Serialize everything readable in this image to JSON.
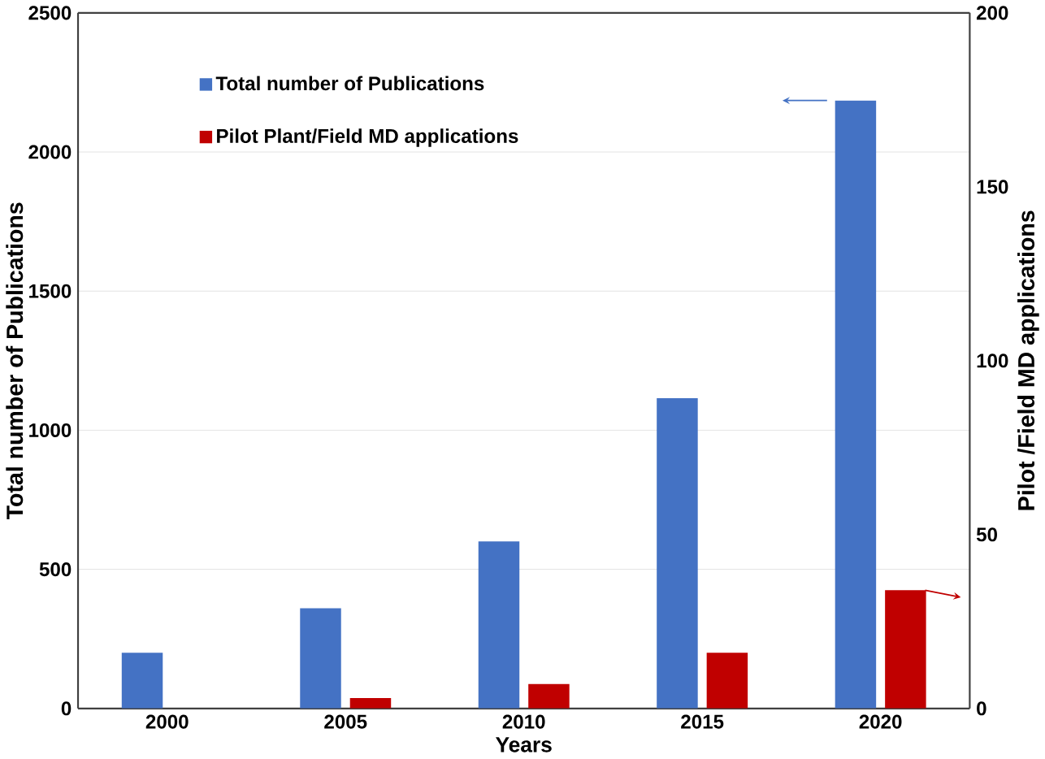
{
  "chart_data": {
    "type": "bar",
    "xlabel": "Years",
    "ylabel": "Total number of Publications",
    "y2label": "Pilot /Field MD applications",
    "categories": [
      "2000",
      "2005",
      "2010",
      "2015",
      "2020"
    ],
    "series": [
      {
        "name": "Total number of Publications",
        "color": "#4472c4",
        "values": [
          200,
          360,
          600,
          1115,
          2185
        ]
      },
      {
        "name": "Pilot Plant/Field MD applications",
        "color": "#c00000",
        "axis": "y2",
        "values": [
          0,
          3,
          7,
          16,
          34
        ]
      }
    ],
    "ylim": [
      0,
      2500
    ],
    "yticks": [
      0,
      500,
      1000,
      1500,
      2000,
      2500
    ],
    "y2lim": [
      0,
      200
    ],
    "y2ticks": [
      0,
      50,
      100,
      150,
      200
    ],
    "grid": "y",
    "legend": "top left"
  }
}
